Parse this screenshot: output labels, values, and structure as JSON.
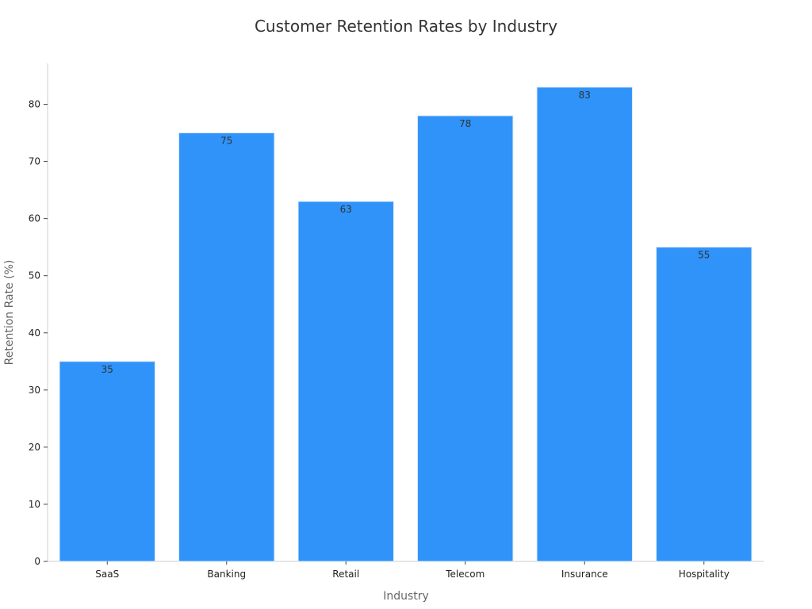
{
  "chart_data": {
    "type": "bar",
    "title": "Customer Retention Rates by Industry",
    "xlabel": "Industry",
    "ylabel": "Retention Rate (%)",
    "categories": [
      "SaaS",
      "Banking",
      "Retail",
      "Telecom",
      "Insurance",
      "Hospitality"
    ],
    "values": [
      35,
      75,
      63,
      78,
      83,
      55
    ],
    "data_labels": [
      "35",
      "75",
      "63",
      "78",
      "83",
      "55"
    ],
    "yticks": [
      0,
      10,
      20,
      30,
      40,
      50,
      60,
      70,
      80
    ],
    "ytick_labels": [
      "0",
      "10",
      "20",
      "30",
      "40",
      "50",
      "60",
      "70",
      "80"
    ],
    "ylim": [
      0,
      87.15
    ],
    "grid": false,
    "legend": "none",
    "bar_color": "#2f93fa",
    "bar_edge_color": "#dbe9f7",
    "axis_color": "#cccccc"
  }
}
